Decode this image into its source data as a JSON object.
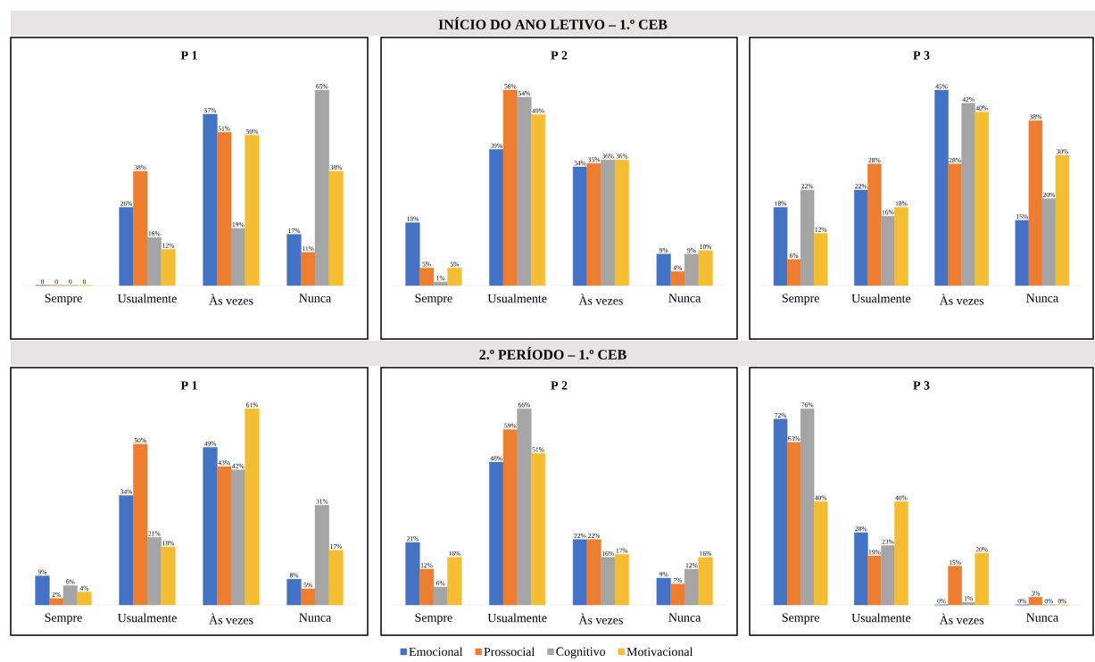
{
  "chart_data": [
    {
      "type": "other",
      "title": "INÍCIO DO ANO LETIVO – 1.º CEB"
    },
    {
      "type": "bar",
      "title": "P 1",
      "categories": [
        "Sempre",
        "Usualmente",
        "Às vezes",
        "Nunca"
      ],
      "series": [
        {
          "color": "#4472c4",
          "values": [
            0,
            26,
            57,
            17
          ],
          "value_labels": [
            "0",
            "26%",
            "57%",
            "17%"
          ]
        },
        {
          "color": "#ed7d31",
          "values": [
            0,
            38,
            51,
            11
          ],
          "value_labels": [
            "0",
            "38%",
            "51%",
            "11%"
          ]
        },
        {
          "color": "#a5a5a5",
          "values": [
            0,
            16,
            19,
            65
          ],
          "value_labels": [
            "0",
            "16%",
            "19%",
            "65%"
          ]
        },
        {
          "color": "#f4bd32",
          "values": [
            0,
            12,
            50,
            38
          ],
          "value_labels": [
            "0",
            "12%",
            "50%",
            "38%"
          ]
        }
      ]
    },
    {
      "type": "bar",
      "title": "P 2",
      "categories": [
        "Sempre",
        "Usualmente",
        "Às vezes",
        "Nunca"
      ],
      "series": [
        {
          "color": "#4472c4",
          "values": [
            18,
            39,
            34,
            9
          ],
          "value_labels": [
            "18%",
            "39%",
            "34%",
            "9%"
          ]
        },
        {
          "color": "#ed7d31",
          "values": [
            5,
            56,
            35,
            4
          ],
          "value_labels": [
            "5%",
            "56%",
            "35%",
            "4%"
          ]
        },
        {
          "color": "#a5a5a5",
          "values": [
            1,
            54,
            36,
            9
          ],
          "value_labels": [
            "1%",
            "54%",
            "36%",
            "9%"
          ]
        },
        {
          "color": "#f4bd32",
          "values": [
            5,
            49,
            36,
            10
          ],
          "value_labels": [
            "5%",
            "49%",
            "36%",
            "10%"
          ]
        }
      ]
    },
    {
      "type": "bar",
      "title": "P 3",
      "categories": [
        "Sempre",
        "Usualmente",
        "Às vezes",
        "Nunca"
      ],
      "series": [
        {
          "color": "#4472c4",
          "values": [
            18,
            22,
            45,
            15
          ],
          "value_labels": [
            "18%",
            "22%",
            "45%",
            "15%"
          ]
        },
        {
          "color": "#ed7d31",
          "values": [
            6,
            28,
            28,
            38
          ],
          "value_labels": [
            "6%",
            "28%",
            "28%",
            "38%"
          ]
        },
        {
          "color": "#a5a5a5",
          "values": [
            22,
            16,
            42,
            20
          ],
          "value_labels": [
            "22%",
            "16%",
            "42%",
            "20%"
          ]
        },
        {
          "color": "#f4bd32",
          "values": [
            12,
            18,
            40,
            30
          ],
          "value_labels": [
            "12%",
            "18%",
            "40%",
            "30%"
          ]
        }
      ]
    },
    {
      "type": "other",
      "title": "2.º PERÍODO – 1.º CEB"
    },
    {
      "type": "bar",
      "title": "P 1",
      "categories": [
        "Sempre",
        "Usualmente",
        "Às vezes",
        "Nunca"
      ],
      "series": [
        {
          "color": "#4472c4",
          "values": [
            9,
            34,
            49,
            8
          ],
          "value_labels": [
            "9%",
            "34%",
            "49%",
            "8%"
          ]
        },
        {
          "color": "#ed7d31",
          "values": [
            2,
            50,
            43,
            5
          ],
          "value_labels": [
            "2%",
            "50%",
            "43%",
            "5%"
          ]
        },
        {
          "color": "#a5a5a5",
          "values": [
            6,
            21,
            42,
            31
          ],
          "value_labels": [
            "6%",
            "21%",
            "42%",
            "31%"
          ]
        },
        {
          "color": "#f4bd32",
          "values": [
            4,
            18,
            61,
            17
          ],
          "value_labels": [
            "4%",
            "18%",
            "61%",
            "17%"
          ]
        }
      ]
    },
    {
      "type": "bar",
      "title": "P 2",
      "categories": [
        "Sempre",
        "Usualmente",
        "Às vezes",
        "Nunca"
      ],
      "series": [
        {
          "color": "#4472c4",
          "values": [
            21,
            48,
            22,
            9
          ],
          "value_labels": [
            "21%",
            "48%",
            "22%",
            "9%"
          ]
        },
        {
          "color": "#ed7d31",
          "values": [
            12,
            59,
            22,
            7
          ],
          "value_labels": [
            "12%",
            "59%",
            "22%",
            "7%"
          ]
        },
        {
          "color": "#a5a5a5",
          "values": [
            6,
            66,
            16,
            12
          ],
          "value_labels": [
            "6%",
            "66%",
            "16%",
            "12%"
          ]
        },
        {
          "color": "#f4bd32",
          "values": [
            16,
            51,
            17,
            16
          ],
          "value_labels": [
            "16%",
            "51%",
            "17%",
            "16%"
          ]
        }
      ]
    },
    {
      "type": "bar",
      "title": "P 3",
      "categories": [
        "Sempre",
        "Usualmente",
        "Às vezes",
        "Nunca"
      ],
      "legend": "bottom",
      "series": [
        {
          "name": "Emocional",
          "color": "#4472c4",
          "values": [
            72,
            28,
            0,
            0
          ],
          "value_labels": [
            "72%",
            "28%",
            "0%",
            "0%"
          ]
        },
        {
          "name": "Prossocial",
          "color": "#ed7d31",
          "values": [
            63,
            19,
            15,
            3
          ],
          "value_labels": [
            "63%",
            "19%",
            "15%",
            "3%"
          ]
        },
        {
          "name": "Cognitivo",
          "color": "#a5a5a5",
          "values": [
            76,
            23,
            1,
            0
          ],
          "value_labels": [
            "76%",
            "23%",
            "1%",
            "0%"
          ]
        },
        {
          "name": "Motivacional",
          "color": "#f4bd32",
          "values": [
            40,
            40,
            20,
            0
          ],
          "value_labels": [
            "40%",
            "40%",
            "20%",
            "0%"
          ]
        }
      ]
    }
  ]
}
